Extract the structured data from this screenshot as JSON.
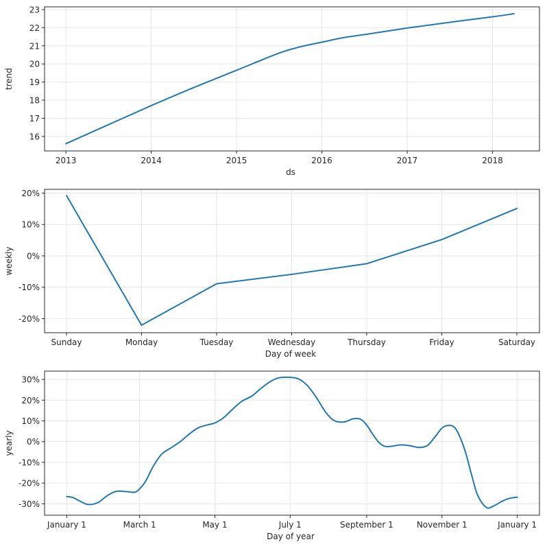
{
  "chart_data": [
    {
      "type": "line",
      "title": "",
      "xlabel": "ds",
      "ylabel": "trend",
      "x_ticks": [
        "2013",
        "2014",
        "2015",
        "2016",
        "2017",
        "2018"
      ],
      "y_ticks": [
        "16",
        "17",
        "18",
        "19",
        "20",
        "21",
        "22",
        "23"
      ],
      "ylim": [
        15.2,
        23.15
      ],
      "xlim": [
        2012.75,
        2018.55
      ],
      "grid": true,
      "series": [
        {
          "name": "trend",
          "color": "#1f77b4",
          "x": [
            2013.0,
            2013.5,
            2014.0,
            2014.5,
            2015.0,
            2015.5,
            2015.75,
            2016.0,
            2016.25,
            2016.5,
            2017.0,
            2017.5,
            2018.0,
            2018.25
          ],
          "y": [
            15.6,
            16.65,
            17.7,
            18.7,
            19.65,
            20.6,
            20.95,
            21.2,
            21.45,
            21.62,
            21.98,
            22.3,
            22.6,
            22.77
          ]
        }
      ]
    },
    {
      "type": "line",
      "title": "",
      "xlabel": "Day of week",
      "ylabel": "weekly",
      "categories": [
        "Sunday",
        "Monday",
        "Tuesday",
        "Wednesday",
        "Thursday",
        "Friday",
        "Saturday"
      ],
      "y_ticks": [
        "-20%",
        "-10%",
        "0%",
        "10%",
        "20%"
      ],
      "ylim": [
        -24.5,
        21.2
      ],
      "grid": true,
      "series": [
        {
          "name": "weekly",
          "color": "#1f77b4",
          "values": [
            19.2,
            -22.1,
            -8.9,
            -5.9,
            -2.5,
            5.2,
            15.1
          ]
        }
      ]
    },
    {
      "type": "line",
      "title": "",
      "xlabel": "Day of year",
      "ylabel": "yearly",
      "x_ticks": [
        "January 1",
        "March 1",
        "May 1",
        "July 1",
        "September 1",
        "November 1",
        "January 1"
      ],
      "x_tick_days": [
        0,
        59,
        120,
        181,
        243,
        304,
        365
      ],
      "y_ticks": [
        "-30%",
        "-20%",
        "-10%",
        "0%",
        "10%",
        "20%",
        "30%"
      ],
      "ylim": [
        -35.5,
        34
      ],
      "xlim": [
        -18,
        383
      ],
      "grid": true,
      "series": [
        {
          "name": "yearly",
          "color": "#1f77b4",
          "x": [
            0,
            5,
            10,
            17,
            25,
            33,
            40,
            48,
            55,
            59,
            64,
            70,
            77,
            85,
            92,
            100,
            107,
            115,
            120,
            127,
            135,
            142,
            150,
            157,
            165,
            172,
            181,
            188,
            195,
            202,
            210,
            217,
            225,
            232,
            238,
            243,
            248,
            253,
            258,
            264,
            270,
            278,
            285,
            292,
            298,
            304,
            309,
            314,
            318,
            323,
            328,
            333,
            340,
            346,
            352,
            358,
            365
          ],
          "y": [
            -26.5,
            -27.0,
            -28.5,
            -30.3,
            -29.5,
            -26.0,
            -24.0,
            -24.1,
            -24.4,
            -22.8,
            -19.0,
            -12.0,
            -6.0,
            -2.8,
            0.0,
            4.0,
            6.8,
            8.2,
            9.0,
            11.5,
            16.0,
            19.5,
            22.0,
            25.5,
            29.0,
            30.8,
            31.0,
            30.2,
            27.0,
            21.5,
            14.0,
            10.0,
            9.5,
            11.0,
            10.8,
            8.0,
            3.5,
            -0.5,
            -2.3,
            -2.2,
            -1.6,
            -2.0,
            -2.8,
            -2.0,
            2.0,
            6.5,
            7.8,
            7.0,
            3.0,
            -5.0,
            -16.0,
            -26.0,
            -31.8,
            -31.0,
            -29.0,
            -27.5,
            -26.8
          ]
        }
      ]
    }
  ]
}
